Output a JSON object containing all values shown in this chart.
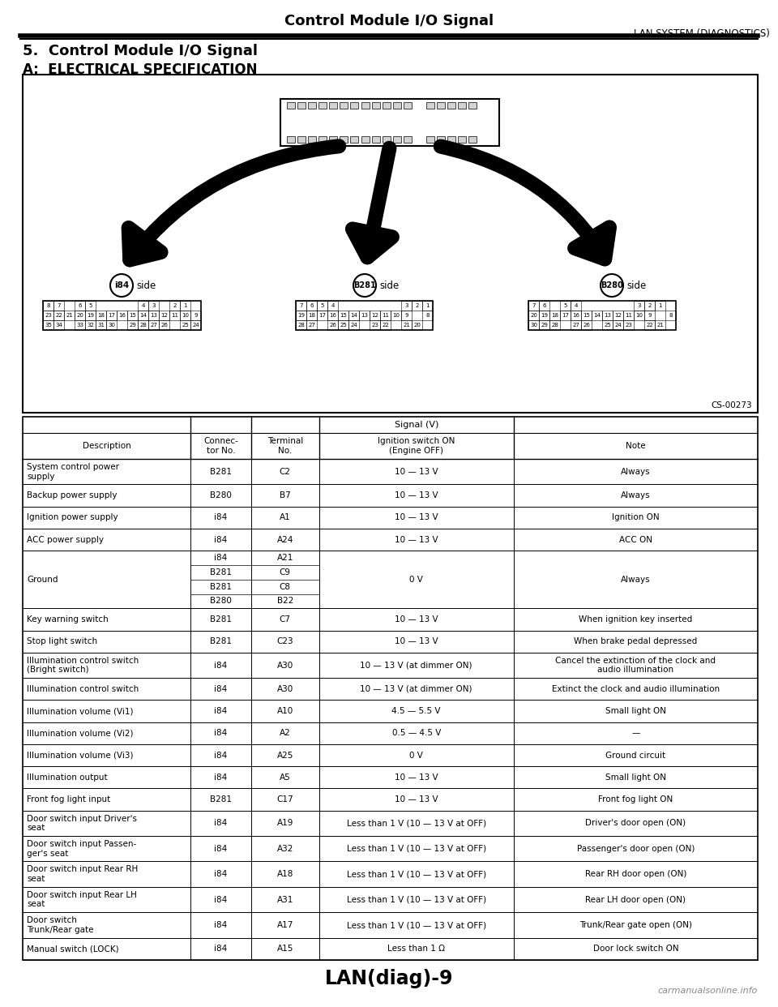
{
  "page_title": "Control Module I/O Signal",
  "page_subtitle": "LAN SYSTEM (DIAGNOSTICS)",
  "section_title": "5.  Control Module I/O Signal",
  "section_subtitle": "A:  ELECTRICAL SPECIFICATION",
  "diagram_label": "CS-00273",
  "table_rows": [
    [
      "System control power\nsupply",
      "B281",
      "C2",
      "10 — 13 V",
      "Always"
    ],
    [
      "Backup power supply",
      "B280",
      "B7",
      "10 — 13 V",
      "Always"
    ],
    [
      "Ignition power supply",
      "i84",
      "A1",
      "10 — 13 V",
      "Ignition ON"
    ],
    [
      "ACC power supply",
      "i84",
      "A24",
      "10 — 13 V",
      "ACC ON"
    ],
    [
      "Ground",
      "i84\nB281\nB281\nB280",
      "A21\nC9\nC8\nB22",
      "0 V",
      "Always"
    ],
    [
      "Key warning switch",
      "B281",
      "C7",
      "10 — 13 V",
      "When ignition key inserted"
    ],
    [
      "Stop light switch",
      "B281",
      "C23",
      "10 — 13 V",
      "When brake pedal depressed"
    ],
    [
      "Illumination control switch\n(Bright switch)",
      "i84",
      "A30",
      "10 — 13 V (at dimmer ON)",
      "Cancel the extinction of the clock and\naudio illumination"
    ],
    [
      "Illumination control switch",
      "i84",
      "A30",
      "10 — 13 V (at dimmer ON)",
      "Extinct the clock and audio illumination"
    ],
    [
      "Illumination volume (Vi1)",
      "i84",
      "A10",
      "4.5 — 5.5 V",
      "Small light ON"
    ],
    [
      "Illumination volume (Vi2)",
      "i84",
      "A2",
      "0.5 — 4.5 V",
      "—"
    ],
    [
      "Illumination volume (Vi3)",
      "i84",
      "A25",
      "0 V",
      "Ground circuit"
    ],
    [
      "Illumination output",
      "i84",
      "A5",
      "10 — 13 V",
      "Small light ON"
    ],
    [
      "Front fog light input",
      "B281",
      "C17",
      "10 — 13 V",
      "Front fog light ON"
    ],
    [
      "Door switch input Driver's\nseat",
      "i84",
      "A19",
      "Less than 1 V (10 — 13 V at OFF)",
      "Driver's door open (ON)"
    ],
    [
      "Door switch input Passen-\nger's seat",
      "i84",
      "A32",
      "Less than 1 V (10 — 13 V at OFF)",
      "Passenger's door open (ON)"
    ],
    [
      "Door switch input Rear RH\nseat",
      "i84",
      "A18",
      "Less than 1 V (10 — 13 V at OFF)",
      "Rear RH door open (ON)"
    ],
    [
      "Door switch input Rear LH\nseat",
      "i84",
      "A31",
      "Less than 1 V (10 — 13 V at OFF)",
      "Rear LH door open (ON)"
    ],
    [
      "Door switch\nTrunk/Rear gate",
      "i84",
      "A17",
      "Less than 1 V (10 — 13 V at OFF)",
      "Trunk/Rear gate open (ON)"
    ],
    [
      "Manual switch (LOCK)",
      "i84",
      "A15",
      "Less than 1 Ω",
      "Door lock switch ON"
    ]
  ],
  "footer": "LAN(diag)-9",
  "watermark": "carmanualsonline.info",
  "col_props": [
    0.228,
    0.083,
    0.092,
    0.265,
    0.332
  ]
}
